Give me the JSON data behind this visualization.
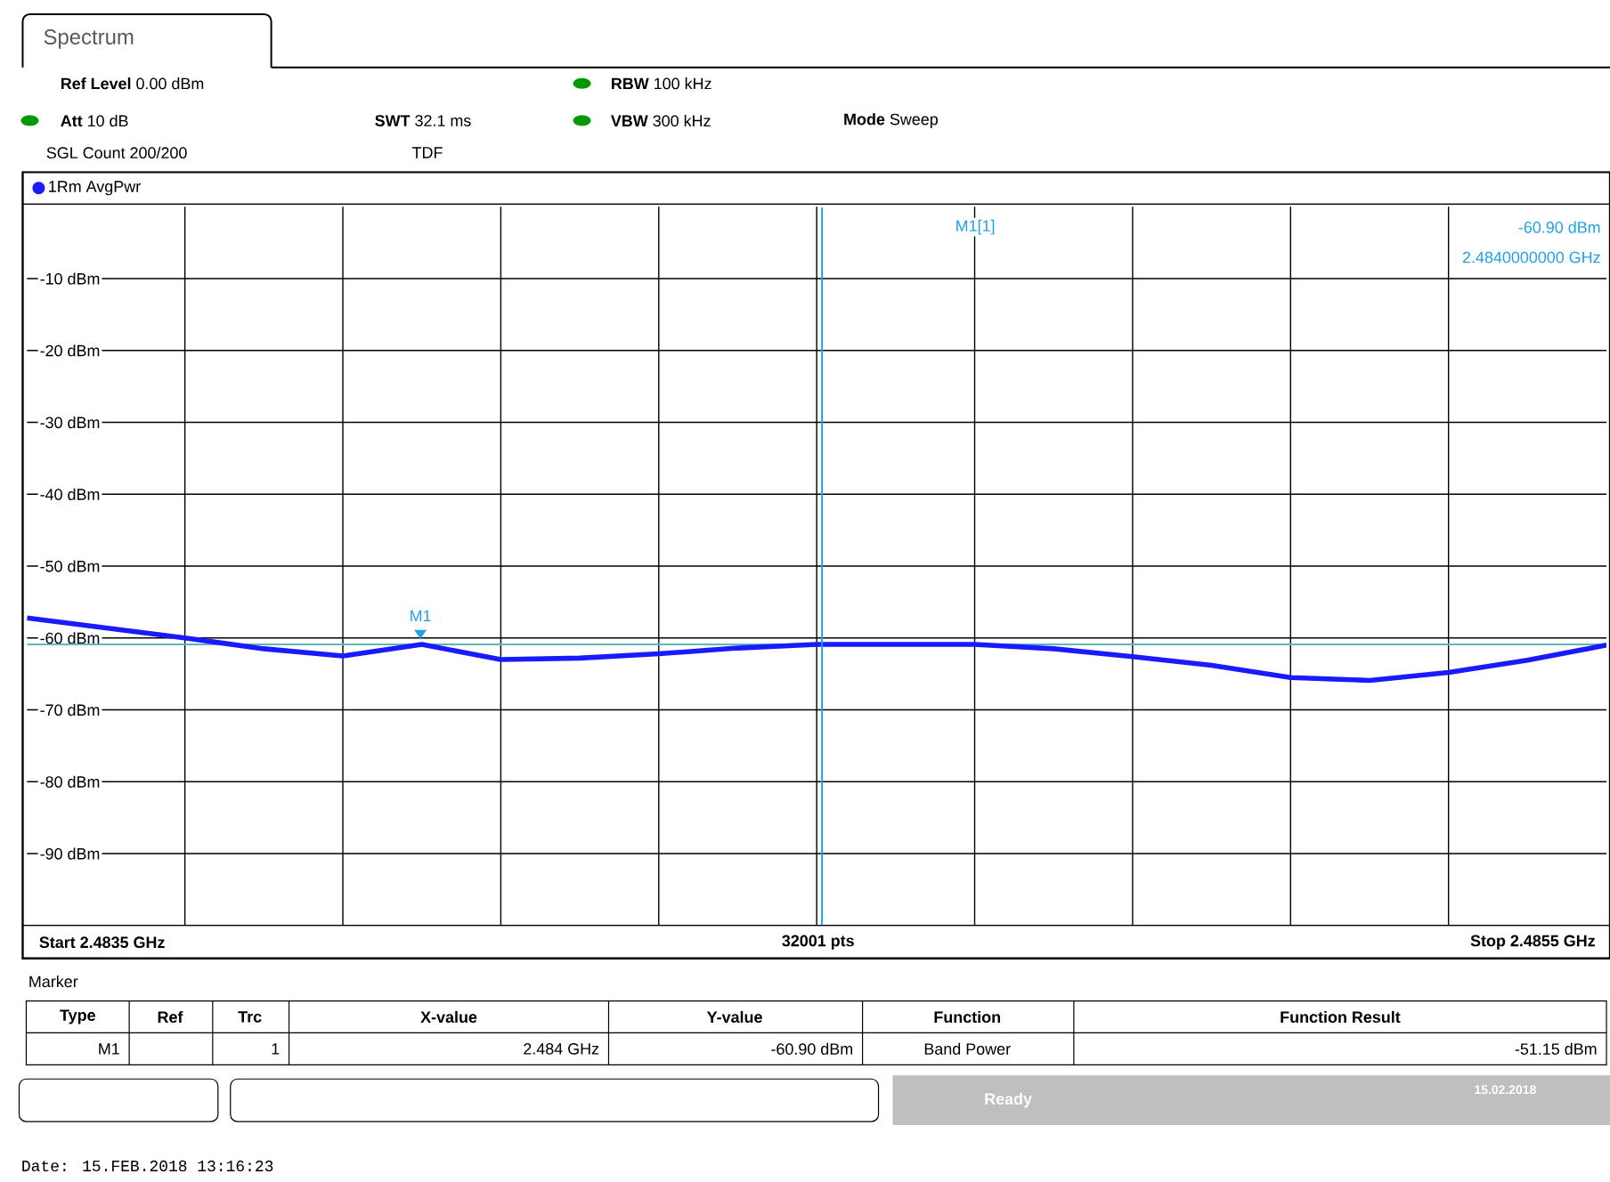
{
  "chart_data": {
    "type": "line",
    "title": "Spectrum",
    "categories": [
      null,
      null,
      null,
      null,
      null,
      null,
      null,
      null,
      null,
      null,
      null,
      null,
      null,
      null,
      null,
      null,
      null,
      null,
      null,
      null,
      null
    ],
    "ylim": [
      -100,
      0
    ],
    "yticks": [
      {
        "value": -90,
        "label": "-90 dBm"
      },
      {
        "value": -80,
        "label": "-80 dBm"
      },
      {
        "value": -70,
        "label": "-70 dBm"
      },
      {
        "value": -60,
        "label": "-60 dBm"
      },
      {
        "value": -50,
        "label": "-50 dBm"
      },
      {
        "value": -40,
        "label": "-40 dBm"
      },
      {
        "value": -30,
        "label": "-30 dBm"
      },
      {
        "value": -20,
        "label": "-20 dBm"
      },
      {
        "value": -10,
        "label": "-10 dBm"
      }
    ],
    "grid": true,
    "series": [
      {
        "name": "1Rm AvgPwr",
        "color": "#1a1aff",
        "values": [
          -57.2,
          -58.6,
          -60.0,
          -61.5,
          -62.5,
          -60.9,
          -63.0,
          -62.8,
          -62.2,
          -61.4,
          -60.9,
          -60.9,
          -60.9,
          -61.5,
          -62.6,
          -63.8,
          -65.5,
          -65.9,
          -64.8,
          -63.1,
          -61.0
        ]
      }
    ],
    "ref_lines": [
      {
        "axis": "y",
        "value": -60.9,
        "color": "#5fb8b8"
      }
    ],
    "annotations": [
      "M1",
      "**Ref Level** 0.00 dBm",
      "**Att** 10 dB",
      "**SWT** 32.1 ms",
      "**RBW** 100 kHz",
      "**VBW** 300 kHz",
      "**Mode** Sweep",
      "SGL Count 200/200",
      "TDF",
      "M1[1]",
      "-60.90 dBm",
      "2.4840000000 GHz",
      "Start 2.4835 GHz",
      "32001 pts",
      "Stop 2.4855 GHz",
      "Marker",
      "Type",
      "Ref",
      "Trc",
      "X-value",
      "Y-value",
      "Function",
      "Function Result",
      "M1",
      "1",
      "2.484 GHz",
      "-60.90 dBm",
      "Band Power",
      "-51.15 dBm",
      "Ready",
      "15.02.2018",
      "Date: 15.FEB.2018  13:16:23"
    ]
  }
}
